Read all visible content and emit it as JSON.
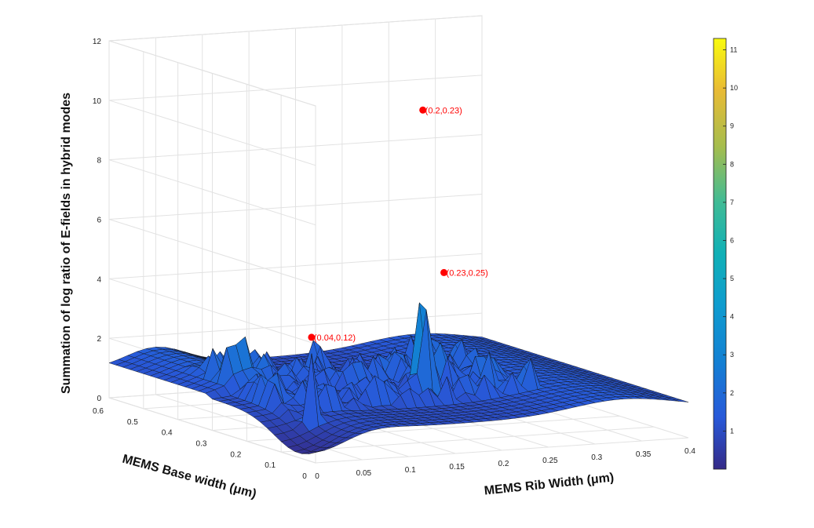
{
  "chart_data": {
    "type": "surface",
    "zlabel": "Summation of log ratio of E-fields in hybrid modes",
    "xlabel": "MEMS Rib Width (μm)",
    "ylabel": "MEMS Base width (μm)",
    "xlim": [
      0,
      0.4
    ],
    "ylim": [
      0,
      0.6
    ],
    "zlim": [
      0,
      12
    ],
    "x_ticks": [
      "0",
      "0.05",
      "0.1",
      "0.15",
      "0.2",
      "0.25",
      "0.3",
      "0.35",
      "0.4"
    ],
    "y_ticks": [
      "0",
      "0.1",
      "0.2",
      "0.3",
      "0.4",
      "0.5",
      "0.6"
    ],
    "z_ticks": [
      "0",
      "2",
      "4",
      "6",
      "8",
      "10",
      "12"
    ],
    "colorbar": {
      "range": [
        0,
        11.3
      ],
      "ticks": [
        "1",
        "2",
        "3",
        "4",
        "5",
        "6",
        "7",
        "8",
        "9",
        "10",
        "11"
      ],
      "colormap": "parula"
    },
    "grid": true,
    "peaks": [
      {
        "label": "(0.2,0.23)",
        "x": 0.2,
        "y": 0.23,
        "z": 10.6
      },
      {
        "label": "(0.23,0.25)",
        "x": 0.23,
        "y": 0.25,
        "z": 5.0
      },
      {
        "label": "(0.04,0.12)",
        "x": 0.04,
        "y": 0.12,
        "z": 3.7
      }
    ],
    "marker_color": "#ff0000"
  }
}
